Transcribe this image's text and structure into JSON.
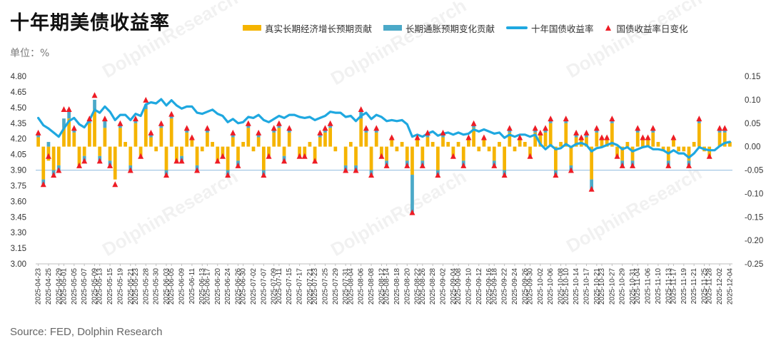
{
  "title": "十年期美债收益率",
  "unit_label": "单位：%",
  "source": "Source: FED, Dolphin Research",
  "watermark": "DolphinResearch",
  "colors": {
    "real": "#f5b400",
    "inflation": "#4ba9c8",
    "yield_line": "#1fa8e0",
    "marker": "#ee1c25",
    "baseline": "#a6c8e6"
  },
  "legend": [
    {
      "label": "真实长期经济增长预期贡献",
      "kind": "bar",
      "color": "#f5b400"
    },
    {
      "label": "长期通胀预期变化贡献",
      "kind": "bar",
      "color": "#4ba9c8"
    },
    {
      "label": "十年国债收益率",
      "kind": "line",
      "color": "#1fa8e0"
    },
    {
      "label": "国债收益率日变化",
      "kind": "triangle",
      "color": "#ee1c25"
    }
  ],
  "chart_data": {
    "type": "bar",
    "title": "十年期美债收益率",
    "unit": "单位：%",
    "left_axis": {
      "min": 3.0,
      "max": 4.8,
      "ticks": [
        "4.80",
        "4.65",
        "4.50",
        "4.35",
        "4.20",
        "4.05",
        "3.90",
        "3.75",
        "3.60",
        "3.45",
        "3.30",
        "3.15",
        "3.00"
      ]
    },
    "right_axis": {
      "min": -0.25,
      "max": 0.15,
      "ticks": [
        "0.15",
        "0.10",
        "0.05",
        "0.00",
        "-0.05",
        "-0.10",
        "-0.15",
        "-0.20",
        "-0.25"
      ]
    },
    "x_tick_labels": [
      "2025-04-23",
      "2025-04-25",
      "2025-04-29",
      "2025-05-01",
      "2025-05-05",
      "2025-05-07",
      "2025-05-09",
      "2025-05-13",
      "2025-05-15",
      "2025-05-19",
      "2025-05-21",
      "2025-05-23",
      "2025-05-28",
      "2025-05-30",
      "2025-06-03",
      "2025-06-05",
      "2025-06-09",
      "2025-06-11",
      "2025-06-13",
      "2025-06-17",
      "2025-06-20",
      "2025-06-24",
      "2025-06-26",
      "2025-06-30",
      "2025-07-02",
      "2025-07-07",
      "2025-07-09",
      "2025-07-11",
      "2025-07-15",
      "2025-07-17",
      "2025-07-21",
      "2025-07-23",
      "2025-07-25",
      "2025-07-29",
      "2025-07-31",
      "2025-08-04",
      "2025-08-06",
      "2025-08-08",
      "2025-08-12",
      "2025-08-14",
      "2025-08-18",
      "2025-08-20",
      "2025-08-22",
      "2025-08-26",
      "2025-08-28",
      "2025-09-02",
      "2025-09-04",
      "2025-09-08",
      "2025-09-10",
      "2025-09-12",
      "2025-09-16",
      "2025-09-18",
      "2025-09-22",
      "2025-09-24",
      "2025-09-26",
      "2025-09-30",
      "2025-10-02",
      "2025-10-06",
      "2025-10-08",
      "2025-10-10",
      "2025-10-14",
      "2025-10-17",
      "2025-10-21",
      "2025-10-23",
      "2025-10-27",
      "2025-10-29",
      "2025-10-31",
      "2025-11-04",
      "2025-11-06",
      "2025-11-10",
      "2025-11-13",
      "2025-11-17",
      "2025-11-19",
      "2025-11-21",
      "2025-11-25",
      "2025-11-28",
      "2025-12-02",
      "2025-12-04"
    ],
    "series": [
      {
        "name": "真实长期经济增长预期贡献",
        "type": "bar",
        "axis": "right",
        "values": [
          0.02,
          -0.07,
          -0.03,
          -0.05,
          -0.04,
          0.04,
          0.06,
          0.03,
          -0.04,
          -0.02,
          0.05,
          0.08,
          -0.02,
          0.04,
          -0.03,
          -0.07,
          0.04,
          0.01,
          -0.04,
          0.05,
          -0.02,
          0.08,
          0.02,
          -0.01,
          0.04,
          -0.05,
          0.06,
          -0.03,
          -0.02,
          0.03,
          0.02,
          -0.04,
          -0.01,
          0.03,
          0.01,
          -0.03,
          -0.02,
          -0.05,
          0.02,
          -0.03,
          0.01,
          0.04,
          -0.01,
          0.02,
          -0.05,
          -0.02,
          0.03,
          0.04,
          -0.02,
          0.03,
          0.0,
          -0.02,
          -0.02,
          0.01,
          -0.03,
          0.02,
          0.03,
          0.04,
          -0.01,
          0.0,
          -0.04,
          0.01,
          -0.04,
          0.06,
          0.03,
          -0.05,
          0.03,
          -0.02,
          -0.03,
          0.02,
          -0.01,
          0.01,
          -0.03,
          -0.06,
          0.02,
          -0.03,
          0.02,
          0.01,
          -0.05,
          0.02,
          0.01,
          -0.02,
          0.01,
          -0.03,
          0.02,
          0.04,
          -0.01,
          0.02,
          -0.01,
          -0.03,
          0.01,
          -0.05,
          0.03,
          -0.01,
          0.02,
          0.01,
          -0.02,
          0.03,
          0.03,
          0.03,
          0.05,
          -0.05,
          0.01,
          0.05,
          -0.04,
          0.02,
          0.02,
          0.02,
          -0.07,
          0.03,
          0.02,
          0.02,
          0.05,
          -0.02,
          -0.03,
          0.01,
          -0.03,
          0.03,
          0.02,
          0.02,
          0.03,
          0.01,
          -0.01,
          -0.03,
          0.02,
          -0.01,
          -0.01,
          -0.03,
          0.01,
          0.05,
          -0.01,
          -0.02,
          0.0,
          0.03,
          0.03,
          0.01
        ]
      },
      {
        "name": "长期通胀预期变化贡献",
        "type": "bar",
        "axis": "right",
        "values": [
          0.01,
          -0.01,
          0.01,
          -0.01,
          -0.01,
          0.02,
          0.02,
          0.01,
          0.0,
          -0.01,
          0.01,
          0.02,
          -0.01,
          0.02,
          -0.01,
          0.0,
          0.01,
          0.0,
          -0.01,
          0.01,
          0.0,
          0.01,
          0.01,
          0.0,
          0.01,
          -0.01,
          0.01,
          0.0,
          -0.01,
          0.01,
          0.0,
          -0.01,
          0.0,
          0.01,
          0.0,
          0.0,
          0.0,
          -0.01,
          0.01,
          -0.01,
          0.0,
          0.01,
          0.0,
          0.01,
          -0.01,
          0.0,
          0.01,
          0.01,
          -0.01,
          0.01,
          0.0,
          0.0,
          0.0,
          0.0,
          0.0,
          0.01,
          0.01,
          0.01,
          0.0,
          0.0,
          -0.01,
          0.0,
          -0.01,
          0.02,
          0.01,
          -0.01,
          0.01,
          0.0,
          -0.01,
          0.0,
          0.0,
          0.0,
          -0.01,
          -0.08,
          0.0,
          -0.01,
          0.01,
          0.0,
          -0.01,
          0.01,
          0.0,
          0.0,
          0.0,
          -0.01,
          0.0,
          0.01,
          0.0,
          0.0,
          0.0,
          -0.01,
          0.0,
          -0.01,
          0.01,
          0.0,
          0.0,
          0.0,
          0.0,
          0.01,
          0.0,
          0.01,
          0.01,
          -0.01,
          0.0,
          0.01,
          -0.01,
          0.01,
          0.0,
          0.01,
          -0.02,
          0.01,
          0.0,
          0.0,
          0.01,
          0.0,
          -0.01,
          0.0,
          -0.01,
          0.01,
          0.0,
          0.0,
          0.01,
          0.0,
          0.0,
          -0.01,
          0.0,
          0.0,
          0.0,
          -0.01,
          0.0,
          0.01,
          0.0,
          0.0,
          0.0,
          0.01,
          0.01,
          0.0
        ]
      },
      {
        "name": "国债收益率日变化",
        "type": "marker",
        "axis": "right",
        "values": [
          0.03,
          -0.08,
          -0.02,
          -0.06,
          -0.05,
          0.08,
          0.08,
          0.04,
          -0.04,
          -0.03,
          0.06,
          0.11,
          -0.03,
          0.06,
          -0.04,
          -0.08,
          0.05,
          0.01,
          -0.05,
          0.06,
          -0.02,
          0.1,
          0.03,
          -0.01,
          0.05,
          -0.06,
          0.07,
          -0.03,
          -0.03,
          0.04,
          0.02,
          -0.05,
          -0.01,
          0.04,
          0.01,
          -0.03,
          -0.02,
          -0.06,
          0.03,
          -0.04,
          0.01,
          0.05,
          -0.01,
          0.03,
          -0.06,
          -0.02,
          0.04,
          0.05,
          -0.03,
          0.04,
          0.0,
          -0.02,
          -0.02,
          0.01,
          -0.03,
          0.03,
          0.04,
          0.05,
          -0.01,
          0.0,
          -0.05,
          0.01,
          -0.05,
          0.08,
          0.04,
          -0.06,
          0.04,
          -0.02,
          -0.04,
          0.02,
          -0.01,
          0.01,
          -0.04,
          -0.14,
          0.02,
          -0.04,
          0.03,
          0.01,
          -0.06,
          0.03,
          0.01,
          -0.02,
          0.01,
          -0.04,
          0.02,
          0.05,
          -0.01,
          0.02,
          -0.01,
          -0.04,
          0.01,
          -0.06,
          0.04,
          -0.01,
          0.02,
          0.01,
          -0.02,
          0.04,
          0.03,
          0.04,
          0.06,
          -0.06,
          0.01,
          0.06,
          -0.05,
          0.03,
          0.02,
          0.03,
          -0.09,
          0.04,
          0.02,
          0.02,
          0.06,
          -0.02,
          -0.04,
          0.01,
          -0.04,
          0.04,
          0.02,
          0.02,
          0.04,
          0.01,
          -0.01,
          -0.04,
          0.02,
          -0.01,
          -0.01,
          -0.04,
          0.01,
          0.06,
          -0.01,
          -0.02,
          0.0,
          0.04,
          0.04,
          0.01
        ]
      },
      {
        "name": "十年国债收益率",
        "type": "line",
        "axis": "left",
        "values": [
          4.4,
          4.33,
          4.3,
          4.26,
          4.22,
          4.3,
          4.37,
          4.4,
          4.34,
          4.31,
          4.38,
          4.48,
          4.45,
          4.51,
          4.46,
          4.38,
          4.43,
          4.43,
          4.38,
          4.44,
          4.42,
          4.53,
          4.55,
          4.54,
          4.58,
          4.52,
          4.57,
          4.52,
          4.49,
          4.51,
          4.51,
          4.45,
          4.44,
          4.46,
          4.48,
          4.44,
          4.42,
          4.36,
          4.39,
          4.35,
          4.36,
          4.41,
          4.4,
          4.43,
          4.38,
          4.36,
          4.39,
          4.42,
          4.4,
          4.43,
          4.43,
          4.41,
          4.4,
          4.41,
          4.38,
          4.4,
          4.42,
          4.46,
          4.45,
          4.45,
          4.41,
          4.42,
          4.37,
          4.42,
          4.45,
          4.39,
          4.43,
          4.41,
          4.37,
          4.38,
          4.37,
          4.38,
          4.34,
          4.22,
          4.24,
          4.22,
          4.25,
          4.27,
          4.23,
          4.25,
          4.26,
          4.24,
          4.26,
          4.24,
          4.25,
          4.29,
          4.27,
          4.29,
          4.27,
          4.25,
          4.26,
          4.21,
          4.24,
          4.22,
          4.24,
          4.24,
          4.22,
          4.24,
          4.15,
          4.1,
          4.14,
          4.1,
          4.11,
          4.15,
          4.12,
          4.15,
          4.16,
          4.14,
          4.08,
          4.11,
          4.12,
          4.14,
          4.16,
          4.14,
          4.1,
          4.12,
          4.08,
          4.1,
          4.12,
          4.13,
          4.1,
          4.1,
          4.09,
          4.06,
          4.09,
          4.06,
          4.06,
          4.02,
          4.06,
          4.12,
          4.1,
          4.09,
          4.09,
          4.13,
          4.16,
          4.17
        ]
      }
    ],
    "legend_position": "top",
    "grid": false
  }
}
